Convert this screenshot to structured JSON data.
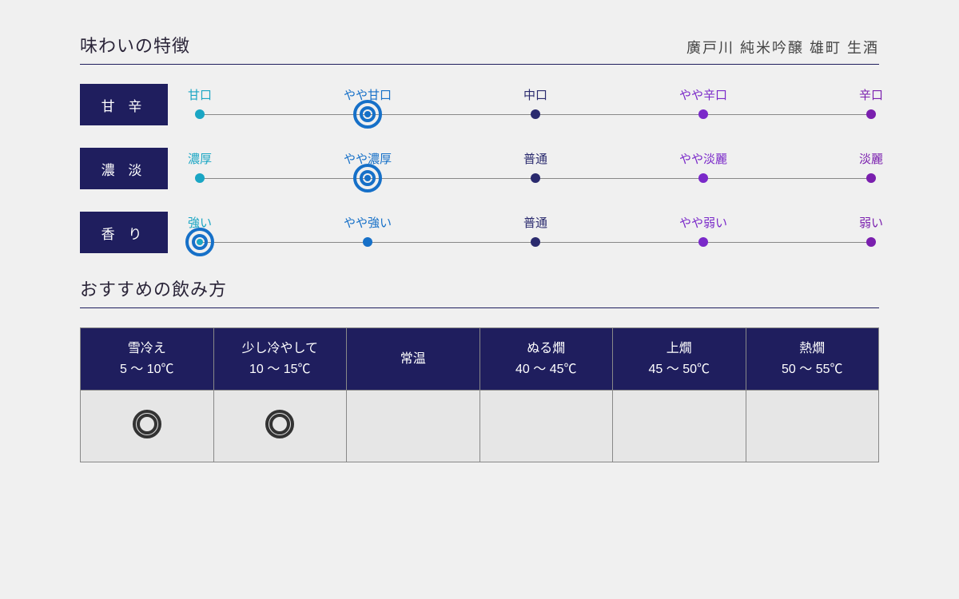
{
  "header": {
    "title": "味わいの特徴",
    "subtitle": "廣戸川 純米吟醸 雄町 生酒"
  },
  "scale_colors": [
    "#1aa6c4",
    "#1670c8",
    "#2a2a6e",
    "#7a29c9",
    "#7a1fae"
  ],
  "selected_style": {
    "outer_diameter": 36,
    "outer_border_width": 4,
    "inner_diameter": 20,
    "inner_border_width": 4,
    "color": "#1670c8"
  },
  "dot_diameter": 12,
  "scales": [
    {
      "label": "甘 辛",
      "stops": [
        "甘口",
        "やや甘口",
        "中口",
        "やや辛口",
        "辛口"
      ],
      "selected_index": 1
    },
    {
      "label": "濃 淡",
      "stops": [
        "濃厚",
        "やや濃厚",
        "普通",
        "やや淡麗",
        "淡麗"
      ],
      "selected_index": 1
    },
    {
      "label": "香 り",
      "stops": [
        "強い",
        "やや強い",
        "普通",
        "やや弱い",
        "弱い"
      ],
      "selected_index": 0
    }
  ],
  "serving": {
    "title": "おすすめの飲み方",
    "columns": [
      {
        "name": "雪冷え",
        "temp": "5 〜 10℃"
      },
      {
        "name": "少し冷やして",
        "temp": "10 〜 15℃"
      },
      {
        "name": "常温",
        "temp": ""
      },
      {
        "name": "ぬる燗",
        "temp": "40 〜 45℃"
      },
      {
        "name": "上燗",
        "temp": "45 〜 50℃"
      },
      {
        "name": "熱燗",
        "temp": "50 〜 55℃"
      }
    ],
    "recommended": [
      true,
      true,
      false,
      false,
      false,
      false
    ]
  }
}
